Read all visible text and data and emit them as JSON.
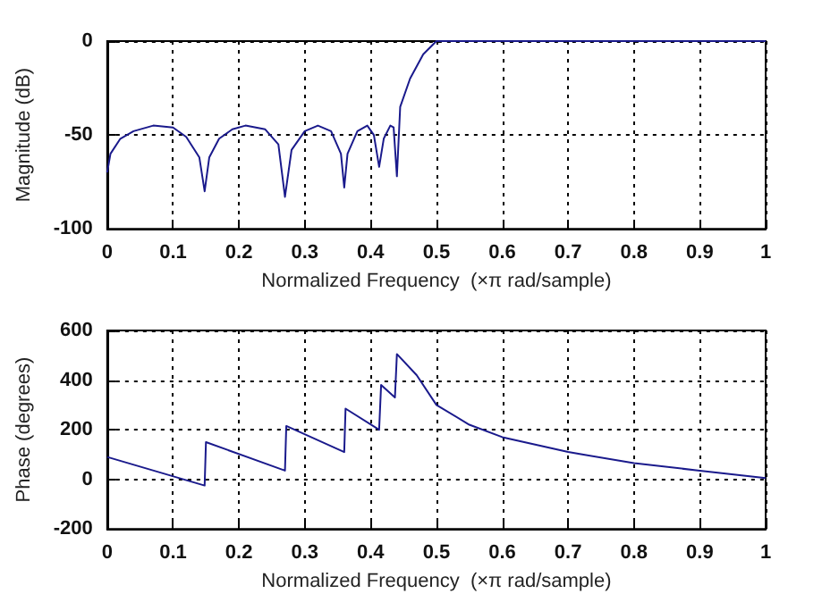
{
  "chart_data": [
    {
      "type": "line",
      "xlabel": "Normalized Frequency  (×π rad/sample)",
      "ylabel": "Magnitude (dB)",
      "xlim": [
        0,
        1
      ],
      "ylim": [
        -100,
        0
      ],
      "xticks": [
        0,
        0.1,
        0.2,
        0.3,
        0.4,
        0.5,
        0.6,
        0.7,
        0.8,
        0.9,
        1
      ],
      "yticks": [
        -100,
        -50,
        0
      ],
      "grid": true,
      "marker": "none",
      "line_style": "solid",
      "series": [
        {
          "color": "#1a1a8c",
          "x": [
            0,
            0.005,
            0.02,
            0.04,
            0.07,
            0.1,
            0.12,
            0.14,
            0.148,
            0.155,
            0.17,
            0.19,
            0.21,
            0.24,
            0.26,
            0.27,
            0.28,
            0.3,
            0.32,
            0.34,
            0.355,
            0.36,
            0.365,
            0.38,
            0.395,
            0.405,
            0.413,
            0.42,
            0.43,
            0.435,
            0.44,
            0.445,
            0.46,
            0.48,
            0.5,
            1
          ],
          "values": [
            -70,
            -60,
            -52,
            -48,
            -45,
            -46,
            -51,
            -62,
            -80,
            -62,
            -52,
            -47,
            -45,
            -47,
            -55,
            -83,
            -58,
            -48,
            -45,
            -48,
            -60,
            -78,
            -60,
            -48,
            -45,
            -50,
            -67,
            -52,
            -45,
            -46,
            -72,
            -35,
            -20,
            -7,
            0,
            0
          ]
        }
      ]
    },
    {
      "type": "line",
      "xlabel": "Normalized Frequency  (×π rad/sample)",
      "ylabel": "Phase (degrees)",
      "xlim": [
        0,
        1
      ],
      "ylim": [
        -200,
        600
      ],
      "xticks": [
        0,
        0.1,
        0.2,
        0.3,
        0.4,
        0.5,
        0.6,
        0.7,
        0.8,
        0.9,
        1
      ],
      "yticks": [
        -200,
        0,
        200,
        400,
        600
      ],
      "grid": true,
      "marker": "none",
      "line_style": "solid",
      "series": [
        {
          "color": "#1a1a8c",
          "x": [
            0,
            0.148,
            0.15,
            0.27,
            0.272,
            0.36,
            0.362,
            0.413,
            0.416,
            0.437,
            0.44,
            0.47,
            0.5,
            0.55,
            0.6,
            0.7,
            0.8,
            0.9,
            1
          ],
          "values": [
            90,
            -25,
            150,
            35,
            215,
            110,
            285,
            200,
            380,
            330,
            505,
            420,
            300,
            220,
            170,
            110,
            65,
            35,
            5
          ]
        }
      ]
    }
  ]
}
